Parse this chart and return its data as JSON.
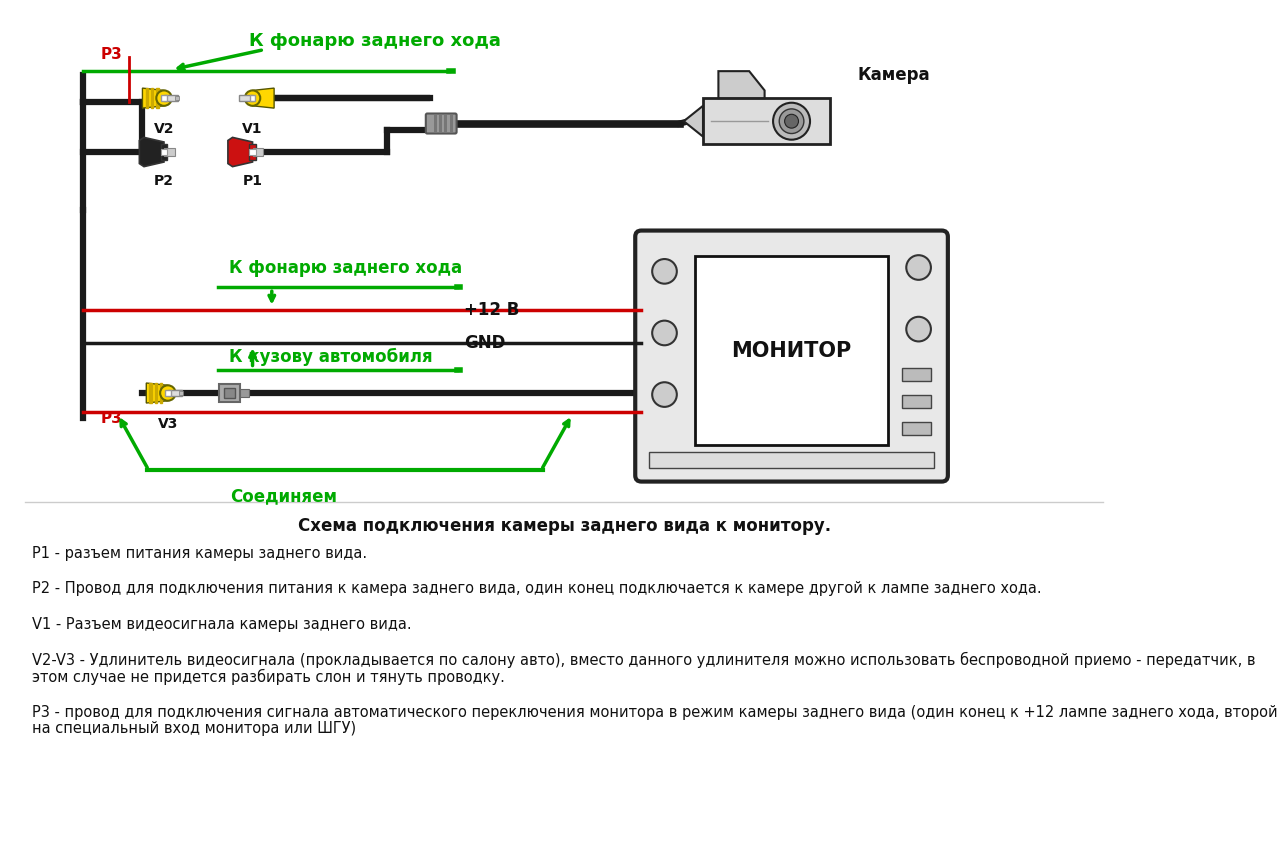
{
  "bg_color": "#ffffff",
  "title_diagram": "Схема подключения камеры заднего вида к монитору.",
  "desc1": "Р1 - разъем питания камеры заднего вида.",
  "desc2": "Р2 - Провод для подключения питания к камера заднего вида, один конец подключается к камере другой к лампе заднего хода.",
  "desc3": "V1 - Разъем видеосигнала камеры заднего вида.",
  "desc4a": "V2-V3 - Удлинитель видеосигнала (прокладывается по салону авто), вместо данного удлинителя можно использовать беспроводной приемо - передатчик, в",
  "desc4b": "этом случае не придется разбирать слон и тянуть проводку.",
  "desc5a": "Р3 - провод для подключения сигнала автоматического переключения монитора в режим камеры заднего вида (один конец к +12 лампе заднего хода, второй",
  "desc5b": "на специальный вход монитора или ШГУ)",
  "label_k_fonaru": "К фонарю заднего хода",
  "label_k_kuzovu": "К кузову автомобиля",
  "label_soediniaem": "Соединяем",
  "label_kamera": "Камера",
  "label_monitor": "МОНИТОР",
  "label_12v": "+12 В",
  "label_gnd": "GND",
  "green_color": "#00aa00",
  "red_color": "#cc0000",
  "black_color": "#111111",
  "yellow_color": "#FFD700",
  "gray_color": "#888888",
  "wire_black": "#1a1a1a"
}
